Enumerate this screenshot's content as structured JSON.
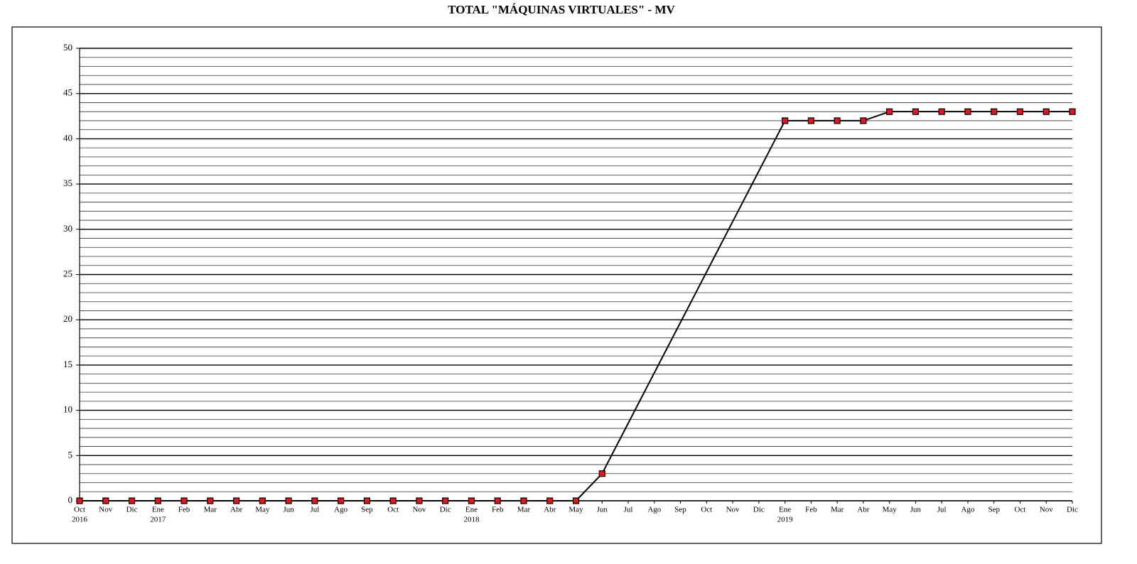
{
  "chart_data": {
    "type": "line",
    "title": "TOTAL \"MÁQUINAS VIRTUALES\" - MV",
    "categories": [
      "Oct",
      "Nov",
      "Dic",
      "Ene",
      "Feb",
      "Mar",
      "Abr",
      "May",
      "Jun",
      "Jul",
      "Ago",
      "Sep",
      "Oct",
      "Nov",
      "Dic",
      "Ene",
      "Feb",
      "Mar",
      "Abr",
      "May",
      "Jun",
      "Jul",
      "Ago",
      "Sep",
      "Oct",
      "Nov",
      "Dic",
      "Ene",
      "Feb",
      "Mar",
      "Abr",
      "May",
      "Jun",
      "Jul",
      "Ago",
      "Sep",
      "Oct",
      "Nov",
      "Dic"
    ],
    "year_labels": [
      "2016",
      null,
      null,
      "2017",
      null,
      null,
      null,
      null,
      null,
      null,
      null,
      null,
      null,
      null,
      null,
      "2018",
      null,
      null,
      null,
      null,
      null,
      null,
      null,
      null,
      null,
      null,
      null,
      "2019",
      null,
      null,
      null,
      null,
      null,
      null,
      null,
      null,
      null,
      null,
      null
    ],
    "series": [
      {
        "color": "#000000",
        "marker_color": "#e8141b",
        "values": [
          0,
          0,
          0,
          0,
          0,
          0,
          0,
          0,
          0,
          0,
          0,
          0,
          0,
          0,
          0,
          0,
          0,
          0,
          0,
          0,
          3,
          null,
          null,
          null,
          null,
          null,
          null,
          42,
          42,
          42,
          42,
          43,
          43,
          43,
          43,
          43,
          43,
          43,
          43
        ]
      }
    ],
    "span_gaps": true,
    "ylim": [
      0,
      50
    ],
    "yticks": [
      0,
      5,
      10,
      15,
      20,
      25,
      30,
      35,
      40,
      45,
      50
    ],
    "yminor_ticks": [
      0,
      1,
      2,
      3,
      4,
      5,
      6,
      7,
      8,
      9,
      10,
      11,
      12,
      13,
      14,
      15,
      16,
      17,
      18,
      19,
      20,
      21,
      22,
      23,
      24,
      25,
      26,
      27,
      28,
      29,
      30,
      31,
      32,
      33,
      34,
      35,
      36,
      37,
      38,
      39,
      40,
      41,
      42,
      43,
      44,
      45,
      46,
      47,
      48,
      49,
      50
    ],
    "grid": true
  }
}
